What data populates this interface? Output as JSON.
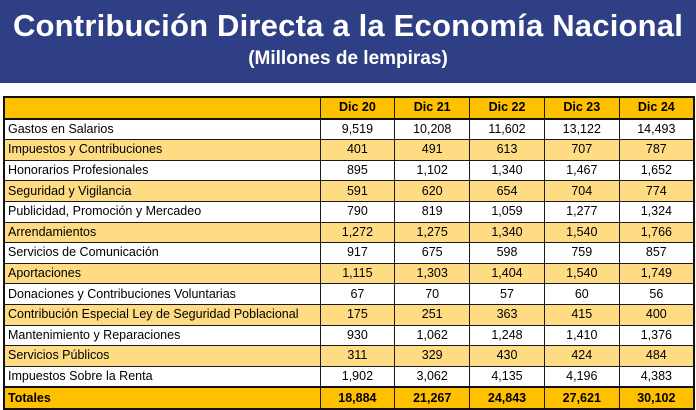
{
  "header": {
    "title": "Contribución Directa a la Economía Nacional",
    "subtitle": "(Millones de lempiras)"
  },
  "table": {
    "columns": [
      "",
      "Dic 20",
      "Dic 21",
      "Dic 22",
      "Dic 23",
      "Dic 24"
    ],
    "rows": [
      {
        "label": "Gastos en Salarios",
        "values": [
          "9,519",
          "10,208",
          "11,602",
          "13,122",
          "14,493"
        ]
      },
      {
        "label": "Impuestos y Contribuciones",
        "values": [
          "401",
          "491",
          "613",
          "707",
          "787"
        ]
      },
      {
        "label": "Honorarios Profesionales",
        "values": [
          "895",
          "1,102",
          "1,340",
          "1,467",
          "1,652"
        ]
      },
      {
        "label": "Seguridad y Vigilancia",
        "values": [
          "591",
          "620",
          "654",
          "704",
          "774"
        ]
      },
      {
        "label": "Publicidad, Promoción y Mercadeo",
        "values": [
          "790",
          "819",
          "1,059",
          "1,277",
          "1,324"
        ]
      },
      {
        "label": "Arrendamientos",
        "values": [
          "1,272",
          "1,275",
          "1,340",
          "1,540",
          "1,766"
        ]
      },
      {
        "label": "Servicios de Comunicación",
        "values": [
          "917",
          "675",
          "598",
          "759",
          "857"
        ]
      },
      {
        "label": "Aportaciones",
        "values": [
          "1,115",
          "1,303",
          "1,404",
          "1,540",
          "1,749"
        ]
      },
      {
        "label": "Donaciones y Contribuciones Voluntarias",
        "values": [
          "67",
          "70",
          "57",
          "60",
          "56"
        ]
      },
      {
        "label": "Contribución Especial Ley de Seguridad Poblacional",
        "values": [
          "175",
          "251",
          "363",
          "415",
          "400"
        ]
      },
      {
        "label": "Mantenimiento y Reparaciones",
        "values": [
          "930",
          "1,062",
          "1,248",
          "1,410",
          "1,376"
        ]
      },
      {
        "label": "Servicios Públicos",
        "values": [
          "311",
          "329",
          "430",
          "424",
          "484"
        ]
      },
      {
        "label": "Impuestos Sobre la Renta",
        "values": [
          "1,902",
          "3,062",
          "4,135",
          "4,196",
          "4,383"
        ]
      }
    ],
    "total": {
      "label": "Totales",
      "values": [
        "18,884",
        "21,267",
        "24,843",
        "27,621",
        "30,102"
      ]
    }
  },
  "colors": {
    "banner": "#2f3f85",
    "header_row": "#ffc000",
    "alt_row": "#ffdb84"
  }
}
